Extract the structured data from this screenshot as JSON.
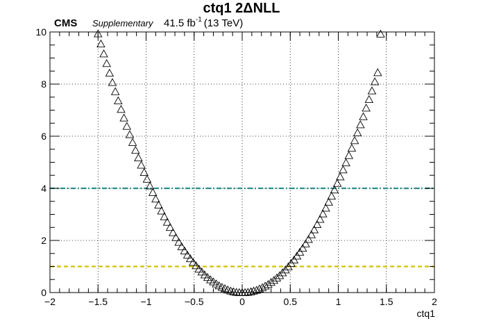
{
  "header": {
    "title": "ctq1 2ΔNLL",
    "experiment": "CMS",
    "status": "Supplementary",
    "lumi_value": "41.5 fb",
    "lumi_exp": "-1",
    "energy": "(13 TeV)"
  },
  "chart_data": {
    "type": "scatter",
    "title": "ctq1 2ΔNLL",
    "xlabel": "ctq1",
    "ylabel": "",
    "xlim": [
      -2,
      2
    ],
    "ylim": [
      0,
      10
    ],
    "x_ticks": [
      -2,
      -1.5,
      -1,
      -0.5,
      0,
      0.5,
      1,
      1.5,
      2
    ],
    "x_tick_labels": [
      "−2",
      "−1.5",
      "−1",
      "−0.5",
      "0",
      "0.5",
      "1",
      "1.5",
      "2"
    ],
    "y_ticks": [
      0,
      2,
      4,
      6,
      8,
      10
    ],
    "y_tick_labels": [
      "0",
      "2",
      "4",
      "6",
      "8",
      "10"
    ],
    "grid": true,
    "marker": "open-triangle",
    "series": [
      {
        "x": [
          -1.5,
          -1.47,
          -1.44,
          -1.41,
          -1.38,
          -1.35,
          -1.32,
          -1.29,
          -1.26,
          -1.23,
          -1.2,
          -1.17,
          -1.14,
          -1.11,
          -1.08,
          -1.05,
          -1.02,
          -0.99,
          -0.96,
          -0.93,
          -0.9,
          -0.87,
          -0.84,
          -0.81,
          -0.78,
          -0.75,
          -0.72,
          -0.69,
          -0.66,
          -0.63,
          -0.6,
          -0.57,
          -0.54,
          -0.51,
          -0.48,
          -0.45,
          -0.42,
          -0.39,
          -0.36,
          -0.33,
          -0.3,
          -0.27,
          -0.24,
          -0.21,
          -0.18,
          -0.15,
          -0.12,
          -0.09,
          -0.06,
          -0.03,
          0.0,
          0.03,
          0.06,
          0.09,
          0.12,
          0.15,
          0.18,
          0.21,
          0.24,
          0.27,
          0.3,
          0.33,
          0.36,
          0.39,
          0.42,
          0.45,
          0.48,
          0.51,
          0.54,
          0.57,
          0.6,
          0.63,
          0.66,
          0.69,
          0.72,
          0.75,
          0.78,
          0.81,
          0.84,
          0.87,
          0.9,
          0.93,
          0.96,
          0.99,
          1.02,
          1.05,
          1.08,
          1.11,
          1.14,
          1.17,
          1.2,
          1.23,
          1.26,
          1.29,
          1.32,
          1.35,
          1.38,
          1.41,
          1.44
        ],
        "y": [
          9.93,
          9.54,
          9.16,
          8.79,
          8.42,
          8.06,
          7.71,
          7.36,
          7.03,
          6.7,
          6.38,
          6.06,
          5.76,
          5.46,
          5.17,
          4.89,
          4.61,
          4.35,
          4.09,
          3.84,
          3.59,
          3.36,
          3.13,
          2.91,
          2.7,
          2.5,
          2.3,
          2.11,
          1.93,
          1.76,
          1.6,
          1.44,
          1.3,
          1.16,
          1.03,
          0.9,
          0.79,
          0.68,
          0.58,
          0.49,
          0.41,
          0.33,
          0.26,
          0.2,
          0.15,
          0.1,
          0.06,
          0.03,
          0.01,
          0.0,
          0.0,
          0.0,
          0.01,
          0.03,
          0.06,
          0.09,
          0.14,
          0.19,
          0.25,
          0.31,
          0.39,
          0.47,
          0.56,
          0.65,
          0.76,
          0.87,
          0.99,
          1.12,
          1.25,
          1.4,
          1.55,
          1.7,
          1.87,
          2.04,
          2.22,
          2.41,
          2.61,
          2.81,
          3.02,
          3.24,
          3.47,
          3.7,
          3.94,
          4.19,
          4.44,
          4.71,
          4.98,
          5.26,
          5.54,
          5.83,
          6.13,
          6.44,
          6.75,
          7.08,
          7.41,
          7.74,
          8.09,
          8.44,
          9.92
        ]
      }
    ],
    "hlines": [
      {
        "y": 4,
        "color": "#2a8f8a",
        "style": "dash-dot"
      },
      {
        "y": 1,
        "color": "#d4c200",
        "style": "dashed"
      }
    ]
  }
}
